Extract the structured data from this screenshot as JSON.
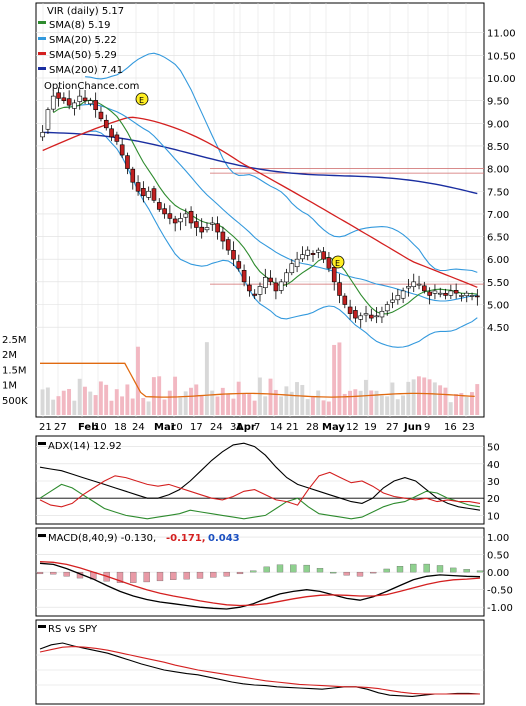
{
  "chart_data": [
    {
      "type": "line",
      "panel": "price",
      "title": "VIR (daily) 5.17",
      "watermark": "OptionChance.com",
      "legend": [
        {
          "label": "SMA(8) 5.19",
          "color": "#2e8b2e"
        },
        {
          "label": "SMA(20) 5.22",
          "color": "#3399dd"
        },
        {
          "label": "SMA(50) 5.29",
          "color": "#d42020"
        },
        {
          "label": "SMA(200) 7.41",
          "color": "#1a2ea0"
        }
      ],
      "legend_placement": "top-left",
      "price_ticks": [
        "11.00",
        "10.50",
        "10.00",
        "9.50",
        "9.00",
        "8.50",
        "8.00",
        "7.50",
        "7.00",
        "6.50",
        "6.00",
        "5.50",
        "5.00",
        "4.50"
      ],
      "volume_ticks": [
        "2.5M",
        "2M",
        "1.5M",
        "1M",
        "500K"
      ],
      "x_ticks": [
        {
          "label": "21",
          "bold": false
        },
        {
          "label": "27",
          "bold": false
        },
        {
          "label": "Feb",
          "bold": true
        },
        {
          "label": "10",
          "bold": false
        },
        {
          "label": "18",
          "bold": false
        },
        {
          "label": "24",
          "bold": false
        },
        {
          "label": "Mar",
          "bold": true
        },
        {
          "label": "10",
          "bold": false
        },
        {
          "label": "17",
          "bold": false
        },
        {
          "label": "24",
          "bold": false
        },
        {
          "label": "31",
          "bold": false
        },
        {
          "label": "Apr",
          "bold": true
        },
        {
          "label": "7",
          "bold": false
        },
        {
          "label": "14",
          "bold": false
        },
        {
          "label": "21",
          "bold": false
        },
        {
          "label": "28",
          "bold": false
        },
        {
          "label": "May",
          "bold": true
        },
        {
          "label": "12",
          "bold": false
        },
        {
          "label": "19",
          "bold": false
        },
        {
          "label": "27",
          "bold": false
        },
        {
          "label": "Jun",
          "bold": true
        },
        {
          "label": "9",
          "bold": false
        },
        {
          "label": "16",
          "bold": false
        },
        {
          "label": "23",
          "bold": false
        }
      ],
      "ylim": [
        4.3,
        11.2
      ],
      "close": [
        8.8,
        9.3,
        9.6,
        9.55,
        9.5,
        9.4,
        9.45,
        9.6,
        9.5,
        9.5,
        9.3,
        9.1,
        8.9,
        8.7,
        8.6,
        8.3,
        8.0,
        7.7,
        7.5,
        7.4,
        7.5,
        7.3,
        7.1,
        7.0,
        6.9,
        6.8,
        6.9,
        7.0,
        6.8,
        6.7,
        6.6,
        6.7,
        6.8,
        6.6,
        6.4,
        6.2,
        6.0,
        5.8,
        5.5,
        5.3,
        5.2,
        5.4,
        5.6,
        5.5,
        5.3,
        5.5,
        5.7,
        5.9,
        6.0,
        6.1,
        6.2,
        6.1,
        6.2,
        6.0,
        5.8,
        5.5,
        5.2,
        5.0,
        4.8,
        4.7,
        4.75,
        4.8,
        4.7,
        4.75,
        4.85,
        5.0,
        5.1,
        5.2,
        5.3,
        5.4,
        5.5,
        5.45,
        5.3,
        5.2,
        5.3,
        5.25,
        5.2,
        5.3,
        5.25,
        5.2,
        5.25,
        5.2,
        5.17
      ],
      "sma8_end": 5.19,
      "sma20_end": 5.22,
      "sma50_end": 5.29,
      "sma200": {
        "start": 8.8,
        "end": 7.41
      },
      "horizontal_levels": [
        8.0,
        7.9,
        5.45
      ],
      "volume_baseline_approx": 650000
    },
    {
      "type": "line",
      "panel": "adx",
      "title": "ADX(14) 12.92",
      "y_ticks": [
        "50",
        "40",
        "30",
        "20",
        "10"
      ],
      "ylim": [
        5,
        55
      ],
      "series": [
        {
          "name": "ADX",
          "color": "#000000",
          "values": [
            38,
            37,
            36,
            34,
            32,
            30,
            28,
            26,
            24,
            22,
            20,
            20,
            22,
            25,
            30,
            36,
            42,
            47,
            51,
            52,
            50,
            45,
            38,
            32,
            28,
            26,
            24,
            22,
            20,
            18,
            17,
            20,
            26,
            30,
            32,
            30,
            25,
            20,
            17,
            15,
            14,
            13
          ]
        },
        {
          "name": "+DI",
          "color": "#2e8b2e",
          "values": [
            20,
            24,
            28,
            26,
            22,
            18,
            14,
            12,
            10,
            9,
            8,
            9,
            10,
            11,
            13,
            12,
            11,
            10,
            9,
            8,
            9,
            10,
            14,
            18,
            20,
            15,
            11,
            10,
            9,
            8,
            9,
            12,
            15,
            17,
            18,
            21,
            24,
            23,
            20,
            18,
            16,
            15
          ]
        },
        {
          "name": "-DI",
          "color": "#d42020",
          "values": [
            19,
            16,
            15,
            17,
            22,
            26,
            30,
            33,
            32,
            30,
            28,
            27,
            28,
            26,
            24,
            22,
            20,
            19,
            21,
            24,
            25,
            22,
            19,
            18,
            16,
            25,
            33,
            35,
            32,
            29,
            30,
            27,
            23,
            21,
            20,
            19,
            20,
            18,
            19,
            18,
            18,
            17
          ]
        }
      ],
      "level": 20
    },
    {
      "type": "bar",
      "panel": "macd",
      "title": "MACD(8,40,9) -0.130,",
      "macd_value": "-0.171,",
      "signal_value": "0.043",
      "y_ticks": [
        "1.00",
        "0.50",
        "0.00",
        "-0.50",
        "-1.00"
      ],
      "ylim": [
        -1.25,
        1.2
      ],
      "macd": [
        0.25,
        0.22,
        0.1,
        -0.05,
        -0.2,
        -0.38,
        -0.55,
        -0.68,
        -0.78,
        -0.85,
        -0.9,
        -0.95,
        -1.0,
        -1.03,
        -1.05,
        -1.0,
        -0.9,
        -0.75,
        -0.62,
        -0.55,
        -0.5,
        -0.55,
        -0.65,
        -0.75,
        -0.8,
        -0.7,
        -0.55,
        -0.38,
        -0.22,
        -0.12,
        -0.08,
        -0.1,
        -0.12,
        -0.13
      ],
      "signal": [
        0.3,
        0.28,
        0.22,
        0.12,
        0.0,
        -0.12,
        -0.25,
        -0.38,
        -0.5,
        -0.6,
        -0.68,
        -0.75,
        -0.82,
        -0.88,
        -0.93,
        -0.95,
        -0.94,
        -0.9,
        -0.83,
        -0.76,
        -0.7,
        -0.66,
        -0.65,
        -0.66,
        -0.68,
        -0.68,
        -0.64,
        -0.55,
        -0.45,
        -0.35,
        -0.27,
        -0.22,
        -0.2,
        -0.17
      ]
    },
    {
      "type": "line",
      "panel": "rs",
      "title": "RS vs SPY",
      "series": [
        {
          "name": "RS",
          "color": "#000000",
          "values": [
            0.85,
            0.92,
            0.95,
            0.9,
            0.86,
            0.82,
            0.78,
            0.72,
            0.66,
            0.6,
            0.55,
            0.5,
            0.47,
            0.44,
            0.42,
            0.38,
            0.34,
            0.3,
            0.27,
            0.25,
            0.24,
            0.22,
            0.21,
            0.2,
            0.19,
            0.18,
            0.2,
            0.22,
            0.22,
            0.18,
            0.12,
            0.08,
            0.07,
            0.06,
            0.08,
            0.1,
            0.1,
            0.11,
            0.11,
            0.1
          ]
        },
        {
          "name": "SMA",
          "color": "#d42020",
          "values": [
            0.8,
            0.84,
            0.88,
            0.89,
            0.88,
            0.86,
            0.83,
            0.79,
            0.75,
            0.71,
            0.67,
            0.63,
            0.58,
            0.54,
            0.5,
            0.47,
            0.44,
            0.41,
            0.38,
            0.35,
            0.32,
            0.3,
            0.28,
            0.26,
            0.25,
            0.24,
            0.23,
            0.22,
            0.22,
            0.21,
            0.19,
            0.16,
            0.13,
            0.11,
            0.1,
            0.1,
            0.1,
            0.1,
            0.1,
            0.1
          ]
        }
      ]
    }
  ]
}
